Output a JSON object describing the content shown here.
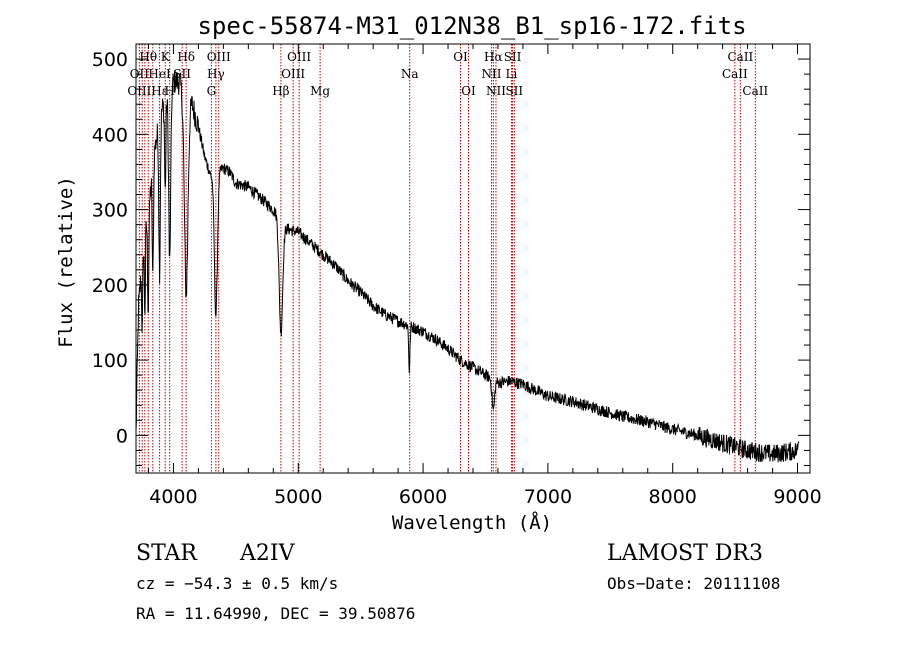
{
  "chart_data": {
    "type": "line",
    "title": "spec-55874-M31_012N38_B1_sp16-172.fits",
    "xlabel": "Wavelength (Å)",
    "ylabel": "Flux (relative)",
    "xlim": [
      3700,
      9100
    ],
    "ylim": [
      -50,
      520
    ],
    "xticks": [
      4000,
      5000,
      6000,
      7000,
      8000,
      9000
    ],
    "yticks": [
      0,
      100,
      200,
      300,
      400,
      500
    ],
    "series": [
      {
        "name": "flux",
        "continuum": [
          [
            3700,
            0
          ],
          [
            3720,
            170
          ],
          [
            3760,
            250
          ],
          [
            3800,
            300
          ],
          [
            3850,
            380
          ],
          [
            3900,
            430
          ],
          [
            3950,
            450
          ],
          [
            4000,
            470
          ],
          [
            4050,
            470
          ],
          [
            4100,
            440
          ],
          [
            4150,
            440
          ],
          [
            4200,
            410
          ],
          [
            4250,
            370
          ],
          [
            4300,
            345
          ],
          [
            4350,
            350
          ],
          [
            4400,
            355
          ],
          [
            4450,
            350
          ],
          [
            4500,
            335
          ],
          [
            4600,
            330
          ],
          [
            4700,
            315
          ],
          [
            4800,
            300
          ],
          [
            4850,
            290
          ],
          [
            4900,
            275
          ],
          [
            5000,
            270
          ],
          [
            5100,
            255
          ],
          [
            5200,
            240
          ],
          [
            5300,
            225
          ],
          [
            5400,
            205
          ],
          [
            5500,
            190
          ],
          [
            5600,
            172
          ],
          [
            5700,
            160
          ],
          [
            5800,
            152
          ],
          [
            5900,
            145
          ],
          [
            6000,
            138
          ],
          [
            6100,
            128
          ],
          [
            6200,
            115
          ],
          [
            6300,
            100
          ],
          [
            6400,
            90
          ],
          [
            6500,
            80
          ],
          [
            6600,
            70
          ],
          [
            6700,
            72
          ],
          [
            6800,
            68
          ],
          [
            6900,
            60
          ],
          [
            7000,
            52
          ],
          [
            7200,
            45
          ],
          [
            7400,
            35
          ],
          [
            7600,
            25
          ],
          [
            7800,
            18
          ],
          [
            8000,
            8
          ],
          [
            8200,
            0
          ],
          [
            8400,
            -10
          ],
          [
            8600,
            -20
          ],
          [
            8800,
            -25
          ],
          [
            9000,
            -20
          ],
          [
            9010,
            -5
          ]
        ],
        "absorption": [
          [
            3750,
            90,
            4
          ],
          [
            3771,
            100,
            4
          ],
          [
            3798,
            130,
            5
          ],
          [
            3835,
            150,
            5
          ],
          [
            3889,
            200,
            6
          ],
          [
            3934,
            120,
            5
          ],
          [
            3970,
            230,
            8
          ],
          [
            4102,
            250,
            14
          ],
          [
            4340,
            190,
            12
          ],
          [
            4861,
            150,
            14
          ],
          [
            5890,
            60,
            5
          ],
          [
            6563,
            40,
            10
          ]
        ],
        "noise": 8
      }
    ],
    "line_markers": [
      {
        "label": "Hθ",
        "x": 3798,
        "row": 0
      },
      {
        "label": "OII",
        "x": 3727,
        "row": 1
      },
      {
        "label": "OIII",
        "x": 3727,
        "row": 2
      },
      {
        "label": "K",
        "x": 3934,
        "row": 0
      },
      {
        "label": "Hδ",
        "x": 4102,
        "row": 0
      },
      {
        "label": "HeI",
        "x": 3889,
        "row": 1
      },
      {
        "label": "SII",
        "x": 4070,
        "row": 1
      },
      {
        "label": "Hε",
        "x": 3889,
        "row": 2
      },
      {
        "label": "H",
        "x": 3970,
        "row": 2
      },
      {
        "label": "OIII",
        "x": 4363,
        "row": 0
      },
      {
        "label": "Hγ",
        "x": 4340,
        "row": 1
      },
      {
        "label": "G",
        "x": 4304,
        "row": 2
      },
      {
        "label": "OIII",
        "x": 5007,
        "row": 0
      },
      {
        "label": "OIII",
        "x": 4959,
        "row": 1
      },
      {
        "label": "Hβ",
        "x": 4861,
        "row": 2
      },
      {
        "label": "Mg",
        "x": 5175,
        "row": 2
      },
      {
        "label": "Na",
        "x": 5893,
        "row": 1
      },
      {
        "label": "OI",
        "x": 6300,
        "row": 0
      },
      {
        "label": "OI",
        "x": 6364,
        "row": 2
      },
      {
        "label": "Hα",
        "x": 6563,
        "row": 0
      },
      {
        "label": "SII",
        "x": 6717,
        "row": 0
      },
      {
        "label": "NII",
        "x": 6548,
        "row": 1
      },
      {
        "label": "Li",
        "x": 6708,
        "row": 1
      },
      {
        "label": "NII",
        "x": 6584,
        "row": 2
      },
      {
        "label": "SII",
        "x": 6731,
        "row": 2
      },
      {
        "label": "CaII",
        "x": 8542,
        "row": 0
      },
      {
        "label": "CaII",
        "x": 8498,
        "row": 1
      },
      {
        "label": "CaII",
        "x": 8662,
        "row": 2
      }
    ],
    "marker_lines": [
      3727,
      3750,
      3771,
      3798,
      3835,
      3889,
      3934,
      3970,
      4070,
      4102,
      4304,
      4340,
      4363,
      4861,
      4959,
      5007,
      5175,
      5893,
      6300,
      6364,
      6548,
      6563,
      6584,
      6708,
      6717,
      6731,
      8498,
      8542,
      8662
    ]
  },
  "info": {
    "class": "STAR",
    "subclass": "A2IV",
    "survey": "LAMOST DR3",
    "cz": "cz = −54.3 ± 0.5 km/s",
    "obs_date": "Obs−Date: 20111108",
    "radec": "RA =  11.64990, DEC =  39.50876"
  }
}
